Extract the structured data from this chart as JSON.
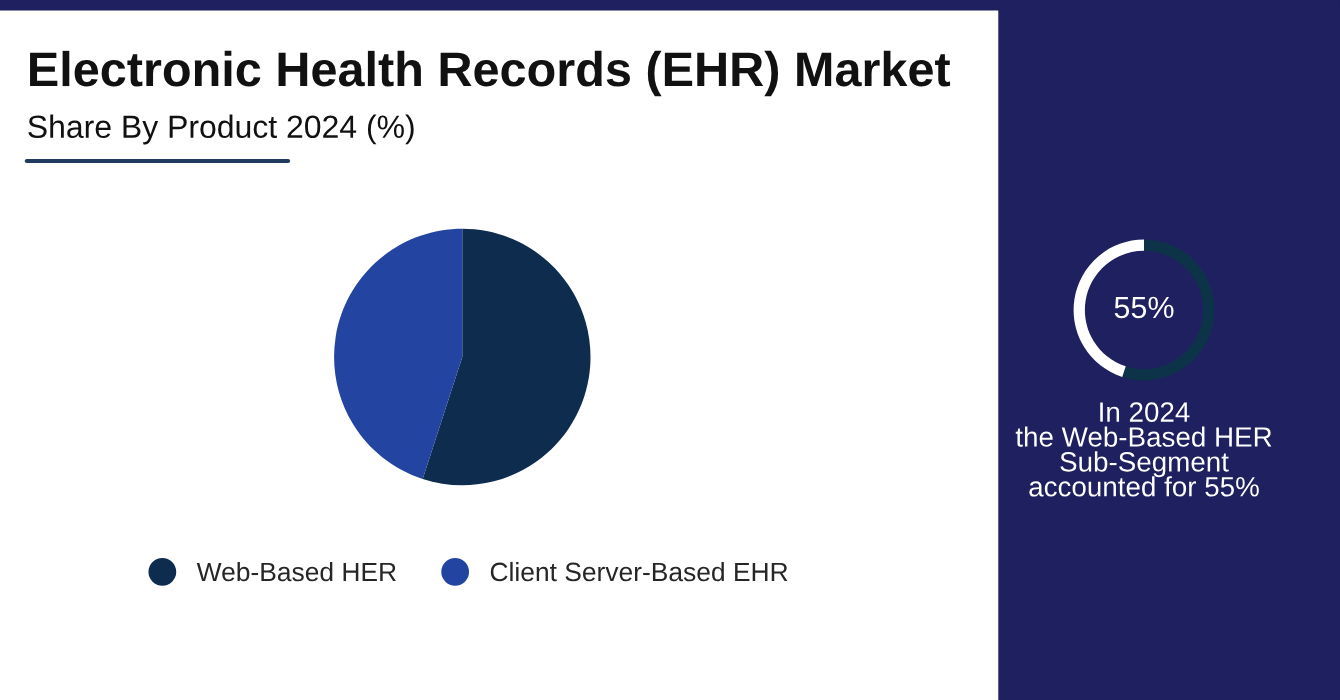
{
  "chart_data": [
    {
      "type": "pie",
      "title": "Electronic Health Records (EHR) Market",
      "subtitle": "Share By Product 2024 (%)",
      "categories": [
        "Web-Based HER",
        "Client Server-Based EHR"
      ],
      "values": [
        55,
        45
      ],
      "colors": [
        "#0e2d4e",
        "#2344a0"
      ],
      "legend": "bottom"
    },
    {
      "type": "donut",
      "categories": [
        null,
        null
      ],
      "values": [
        55,
        45
      ],
      "colors": [
        "#0d3349",
        "#ffffff"
      ],
      "annotations": [
        "55%",
        "In 2024\nthe Web-Based HER\nSub-Segment\naccounted for 55%"
      ]
    }
  ]
}
